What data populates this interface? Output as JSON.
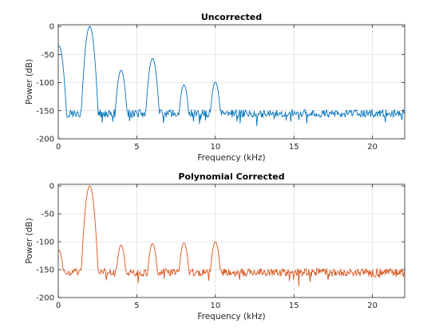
{
  "chart_data": [
    {
      "type": "line",
      "title": "Uncorrected",
      "xlabel": "Frequency (kHz)",
      "ylabel": "Power (dB)",
      "xlim": [
        0,
        22.05
      ],
      "ylim": [
        -200,
        3
      ],
      "xticks": [
        0,
        5,
        10,
        15,
        20
      ],
      "xtick_labels": [
        "0",
        "5",
        "10",
        "15",
        "20"
      ],
      "yticks": [
        0,
        -50,
        -100,
        -150,
        -200
      ],
      "ytick_labels": [
        "0",
        "-50",
        "-100",
        "-150",
        "-200"
      ],
      "grid": true,
      "color": "#0072BD",
      "series": [
        {
          "noise_floor_db": -155,
          "peaks": [
            {
              "x": 0.05,
              "y": -35
            },
            {
              "x": 2.0,
              "y": 0
            },
            {
              "x": 4.0,
              "y": -78
            },
            {
              "x": 6.0,
              "y": -57
            },
            {
              "x": 8.0,
              "y": -104
            },
            {
              "x": 10.0,
              "y": -99
            }
          ]
        }
      ]
    },
    {
      "type": "line",
      "title": "Polynomial Corrected",
      "xlabel": "Frequency (kHz)",
      "ylabel": "Power (dB)",
      "xlim": [
        0,
        22.05
      ],
      "ylim": [
        -200,
        3
      ],
      "xticks": [
        0,
        5,
        10,
        15,
        20
      ],
      "xtick_labels": [
        "0",
        "5",
        "10",
        "15",
        "20"
      ],
      "yticks": [
        0,
        -50,
        -100,
        -150,
        -200
      ],
      "ytick_labels": [
        "0",
        "-50",
        "-100",
        "-150",
        "-200"
      ],
      "grid": true,
      "color": "#D95319",
      "series": [
        {
          "noise_floor_db": -155,
          "peaks": [
            {
              "x": 0.05,
              "y": -115
            },
            {
              "x": 2.0,
              "y": 0
            },
            {
              "x": 4.0,
              "y": -106
            },
            {
              "x": 6.0,
              "y": -103
            },
            {
              "x": 8.0,
              "y": -102
            },
            {
              "x": 10.0,
              "y": -100
            }
          ]
        }
      ]
    }
  ]
}
